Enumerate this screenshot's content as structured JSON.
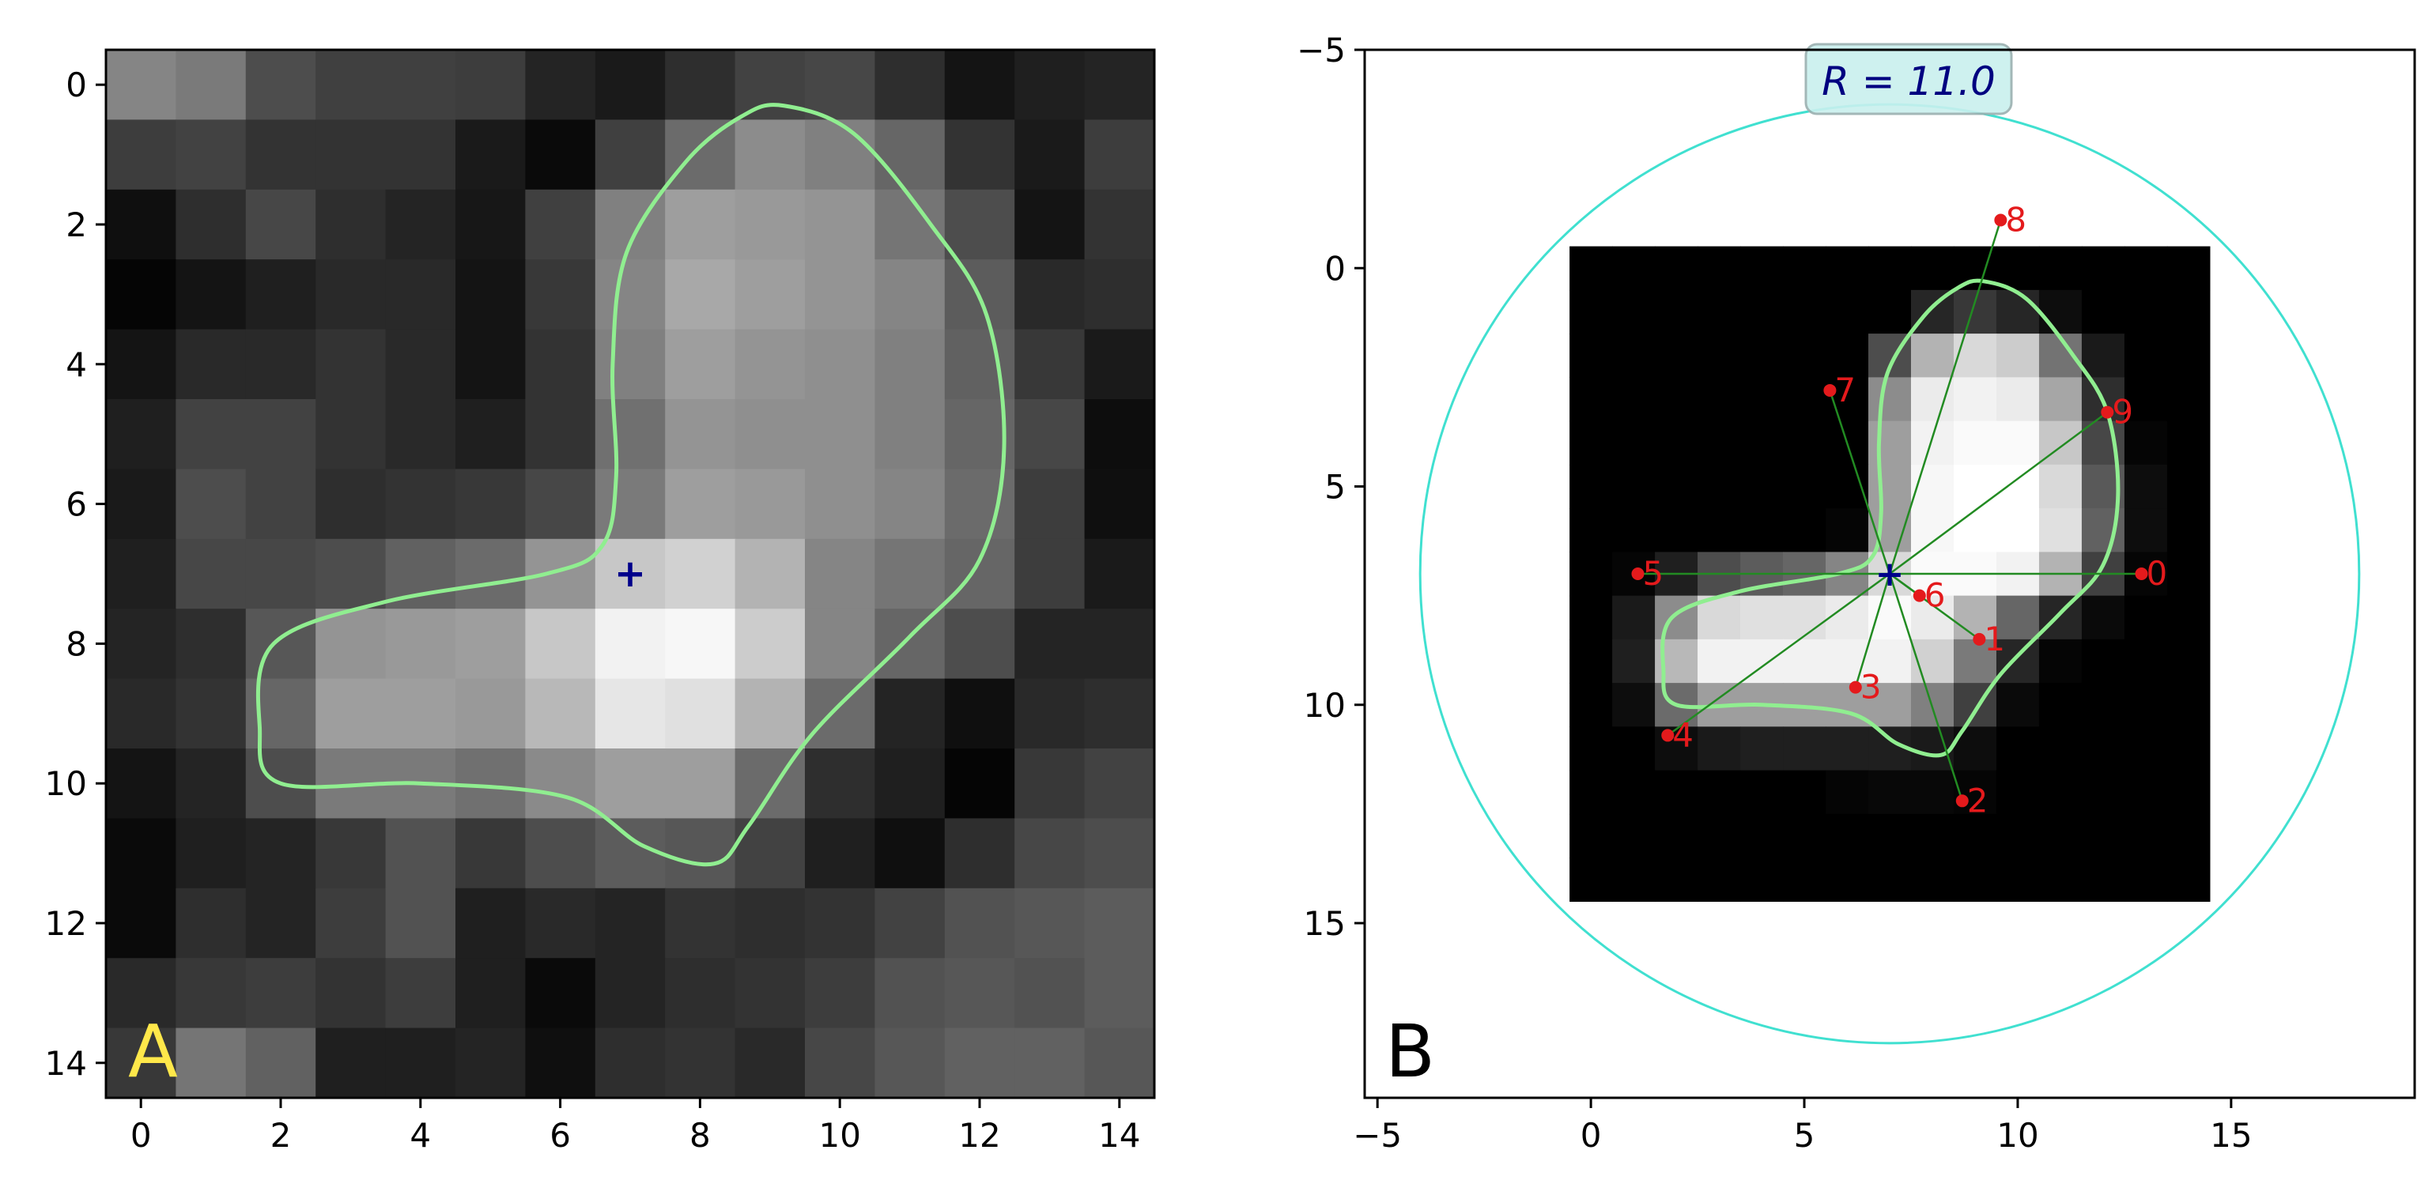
{
  "figure": {
    "panels": [
      {
        "id": "A",
        "label": "A",
        "label_color": "#ffe84a"
      },
      {
        "id": "B",
        "label": "B",
        "label_color": "#000000"
      }
    ],
    "radius_label": "R = 11.0",
    "colors": {
      "contour": "#90ee90",
      "circle": "#40e0d0",
      "points": "#e41a1c",
      "spokes": "#228b22",
      "center_marker": "#00008b",
      "radius_box": "#c9f0ee"
    }
  },
  "chart_data": [
    {
      "type": "heatmap",
      "panel": "A",
      "title": "",
      "xlabel": "",
      "ylabel": "",
      "xlim": [
        -0.5,
        14.5
      ],
      "ylim": [
        14.5,
        -0.5
      ],
      "xticks": [
        "0",
        "2",
        "4",
        "6",
        "8",
        "10",
        "12",
        "14"
      ],
      "yticks": [
        "0",
        "2",
        "4",
        "6",
        "8",
        "10",
        "12",
        "14"
      ],
      "colormap": "gray",
      "center_marker": {
        "x": 7,
        "y": 7,
        "symbol": "+"
      },
      "values": [
        [
          0.52,
          0.48,
          0.3,
          0.25,
          0.25,
          0.24,
          0.14,
          0.1,
          0.18,
          0.26,
          0.28,
          0.18,
          0.08,
          0.12,
          0.14
        ],
        [
          0.24,
          0.26,
          0.2,
          0.2,
          0.2,
          0.1,
          0.04,
          0.25,
          0.42,
          0.55,
          0.5,
          0.4,
          0.2,
          0.1,
          0.24
        ],
        [
          0.06,
          0.18,
          0.28,
          0.18,
          0.14,
          0.09,
          0.25,
          0.5,
          0.62,
          0.6,
          0.58,
          0.46,
          0.3,
          0.08,
          0.2
        ],
        [
          0.02,
          0.08,
          0.12,
          0.16,
          0.16,
          0.08,
          0.22,
          0.52,
          0.66,
          0.62,
          0.58,
          0.52,
          0.36,
          0.16,
          0.18
        ],
        [
          0.08,
          0.16,
          0.16,
          0.2,
          0.16,
          0.08,
          0.2,
          0.5,
          0.62,
          0.58,
          0.56,
          0.5,
          0.38,
          0.22,
          0.1
        ],
        [
          0.12,
          0.26,
          0.26,
          0.2,
          0.16,
          0.12,
          0.2,
          0.44,
          0.58,
          0.56,
          0.56,
          0.5,
          0.4,
          0.28,
          0.05
        ],
        [
          0.1,
          0.3,
          0.26,
          0.18,
          0.2,
          0.22,
          0.28,
          0.48,
          0.62,
          0.6,
          0.56,
          0.52,
          0.42,
          0.24,
          0.06
        ],
        [
          0.12,
          0.28,
          0.28,
          0.3,
          0.38,
          0.42,
          0.58,
          0.78,
          0.82,
          0.7,
          0.52,
          0.46,
          0.4,
          0.24,
          0.1
        ],
        [
          0.14,
          0.18,
          0.34,
          0.58,
          0.6,
          0.62,
          0.78,
          0.95,
          0.97,
          0.8,
          0.52,
          0.4,
          0.3,
          0.14,
          0.14
        ],
        [
          0.16,
          0.2,
          0.4,
          0.62,
          0.62,
          0.6,
          0.72,
          0.9,
          0.88,
          0.7,
          0.42,
          0.14,
          0.06,
          0.16,
          0.18
        ],
        [
          0.08,
          0.14,
          0.3,
          0.48,
          0.48,
          0.44,
          0.54,
          0.62,
          0.62,
          0.42,
          0.18,
          0.12,
          0.02,
          0.22,
          0.26
        ],
        [
          0.04,
          0.12,
          0.14,
          0.22,
          0.32,
          0.22,
          0.3,
          0.36,
          0.34,
          0.26,
          0.12,
          0.06,
          0.18,
          0.28,
          0.3
        ],
        [
          0.04,
          0.18,
          0.14,
          0.24,
          0.32,
          0.12,
          0.16,
          0.14,
          0.2,
          0.18,
          0.2,
          0.26,
          0.32,
          0.34,
          0.36
        ],
        [
          0.16,
          0.22,
          0.24,
          0.2,
          0.24,
          0.12,
          0.04,
          0.14,
          0.18,
          0.2,
          0.24,
          0.32,
          0.34,
          0.32,
          0.36
        ],
        [
          0.22,
          0.46,
          0.38,
          0.12,
          0.12,
          0.14,
          0.06,
          0.18,
          0.2,
          0.16,
          0.28,
          0.34,
          0.38,
          0.38,
          0.34
        ]
      ]
    },
    {
      "type": "scatter",
      "panel": "B",
      "title": "",
      "xlabel": "",
      "ylabel": "",
      "xlim": [
        -5.3,
        19.3
      ],
      "ylim": [
        19.0,
        -5.0
      ],
      "xticks": [
        "−5",
        "0",
        "5",
        "10",
        "15"
      ],
      "yticks": [
        "−5",
        "0",
        "5",
        "10",
        "15"
      ],
      "center": {
        "x": 7,
        "y": 7
      },
      "circle": {
        "cx": 7,
        "cy": 7,
        "r": 11.0
      },
      "image_extent": [
        -0.5,
        14.5,
        14.5,
        -0.5
      ],
      "points": [
        {
          "label": "0",
          "x": 12.9,
          "y": 7.0
        },
        {
          "label": "1",
          "x": 9.1,
          "y": 8.5
        },
        {
          "label": "2",
          "x": 8.7,
          "y": 12.2
        },
        {
          "label": "3",
          "x": 6.2,
          "y": 9.6
        },
        {
          "label": "4",
          "x": 1.8,
          "y": 10.7
        },
        {
          "label": "5",
          "x": 1.1,
          "y": 7.0
        },
        {
          "label": "6",
          "x": 7.7,
          "y": 7.5
        },
        {
          "label": "7",
          "x": 5.6,
          "y": 2.8
        },
        {
          "label": "8",
          "x": 9.6,
          "y": -1.1
        },
        {
          "label": "9",
          "x": 12.1,
          "y": 3.3
        }
      ],
      "values": [
        [
          0,
          0,
          0,
          0,
          0,
          0,
          0,
          0,
          0,
          0,
          0,
          0,
          0,
          0,
          0
        ],
        [
          0,
          0,
          0,
          0,
          0,
          0,
          0,
          0,
          0.15,
          0.22,
          0.15,
          0.05,
          0,
          0,
          0
        ],
        [
          0,
          0,
          0,
          0,
          0,
          0,
          0,
          0.3,
          0.7,
          0.85,
          0.8,
          0.45,
          0.1,
          0,
          0
        ],
        [
          0,
          0,
          0,
          0,
          0,
          0,
          0,
          0.55,
          0.92,
          0.95,
          0.92,
          0.65,
          0.18,
          0,
          0
        ],
        [
          0,
          0,
          0,
          0,
          0,
          0,
          0,
          0.62,
          0.95,
          0.98,
          0.98,
          0.78,
          0.28,
          0.02,
          0
        ],
        [
          0,
          0,
          0,
          0,
          0,
          0,
          0,
          0.62,
          0.97,
          1.0,
          1.0,
          0.85,
          0.35,
          0.05,
          0
        ],
        [
          0,
          0,
          0,
          0,
          0,
          0,
          0.02,
          0.62,
          0.97,
          1.0,
          1.0,
          0.88,
          0.38,
          0.05,
          0
        ],
        [
          0,
          0.02,
          0.12,
          0.3,
          0.36,
          0.4,
          0.52,
          0.85,
          0.98,
          0.98,
          0.95,
          0.7,
          0.25,
          0.02,
          0
        ],
        [
          0,
          0.1,
          0.55,
          0.85,
          0.88,
          0.88,
          0.92,
          0.98,
          0.92,
          0.7,
          0.4,
          0.15,
          0.04,
          0,
          0
        ],
        [
          0,
          0.12,
          0.72,
          0.95,
          0.95,
          0.95,
          0.95,
          0.95,
          0.82,
          0.48,
          0.15,
          0.02,
          0,
          0,
          0
        ],
        [
          0,
          0.05,
          0.42,
          0.62,
          0.62,
          0.62,
          0.62,
          0.62,
          0.5,
          0.25,
          0.04,
          0,
          0,
          0,
          0
        ],
        [
          0,
          0,
          0.05,
          0.1,
          0.12,
          0.12,
          0.12,
          0.12,
          0.1,
          0.05,
          0,
          0,
          0,
          0,
          0
        ],
        [
          0,
          0,
          0,
          0,
          0,
          0,
          0.02,
          0.03,
          0.03,
          0.02,
          0,
          0,
          0,
          0,
          0
        ],
        [
          0,
          0,
          0,
          0,
          0,
          0,
          0,
          0,
          0,
          0,
          0,
          0,
          0,
          0,
          0
        ],
        [
          0,
          0,
          0,
          0,
          0,
          0,
          0,
          0,
          0,
          0,
          0,
          0,
          0,
          0,
          0
        ]
      ]
    }
  ]
}
